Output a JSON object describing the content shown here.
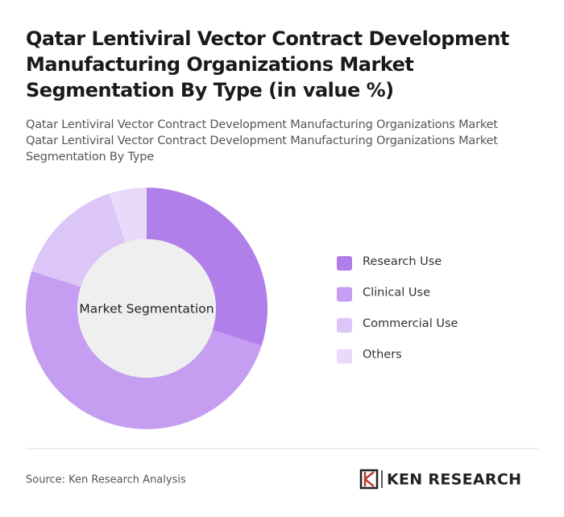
{
  "chart_data": {
    "type": "donut",
    "title": "Qatar Lentiviral Vector Contract Development Manufacturing Organizations Market Segmentation By Type (in value %)",
    "subtitle": "Qatar Lentiviral Vector Contract Development Manufacturing Organizations Market Qatar Lentiviral Vector Contract Development Manufacturing Organizations Market Segmentation By Type",
    "center_label": "Market Segmentation",
    "categories": [
      "Research Use",
      "Clinical Use",
      "Commercial Use",
      "Others"
    ],
    "values": [
      30,
      50,
      15,
      5
    ],
    "colors": [
      "#b07fe9",
      "#c59df1",
      "#dcc5f7",
      "#e9dafa"
    ],
    "source": "Source: Ken Research Analysis",
    "logo": "KEN RESEARCH"
  }
}
